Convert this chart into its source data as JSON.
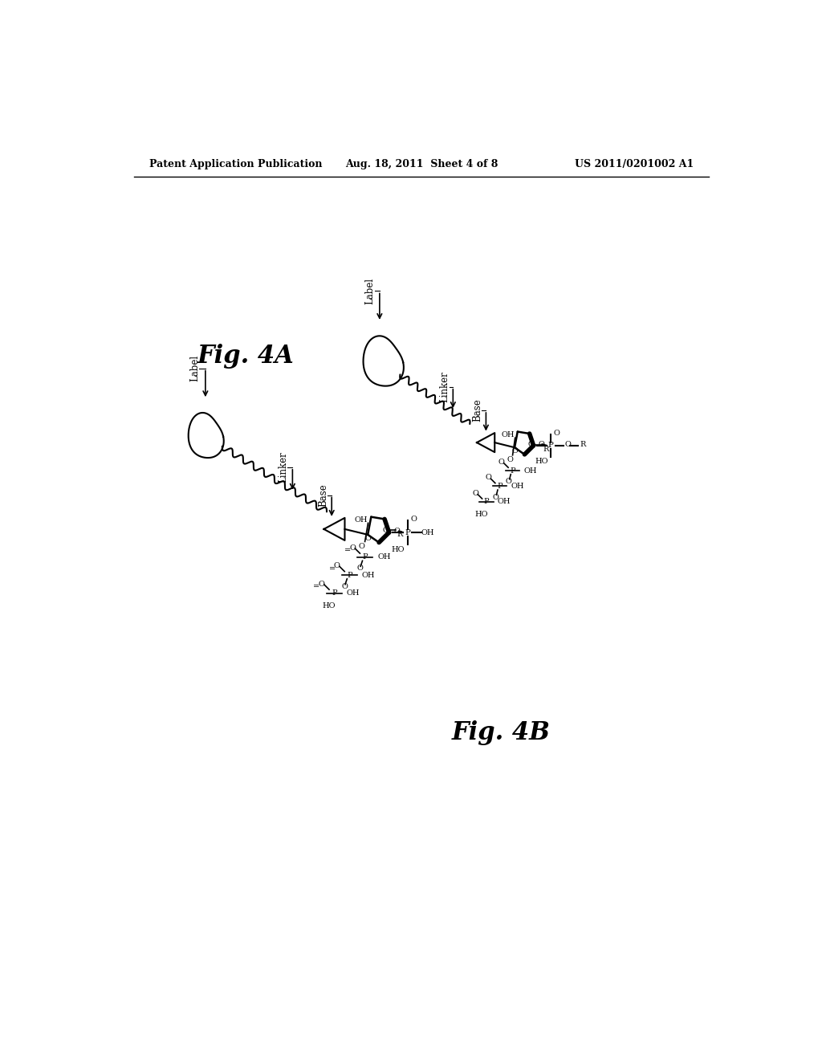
{
  "bg_color": "#ffffff",
  "header_left": "Patent Application Publication",
  "header_center": "Aug. 18, 2011  Sheet 4 of 8",
  "header_right": "US 2011/0201002 A1",
  "fig4a_label": "Fig. 4A",
  "fig4b_label": "Fig. 4B"
}
